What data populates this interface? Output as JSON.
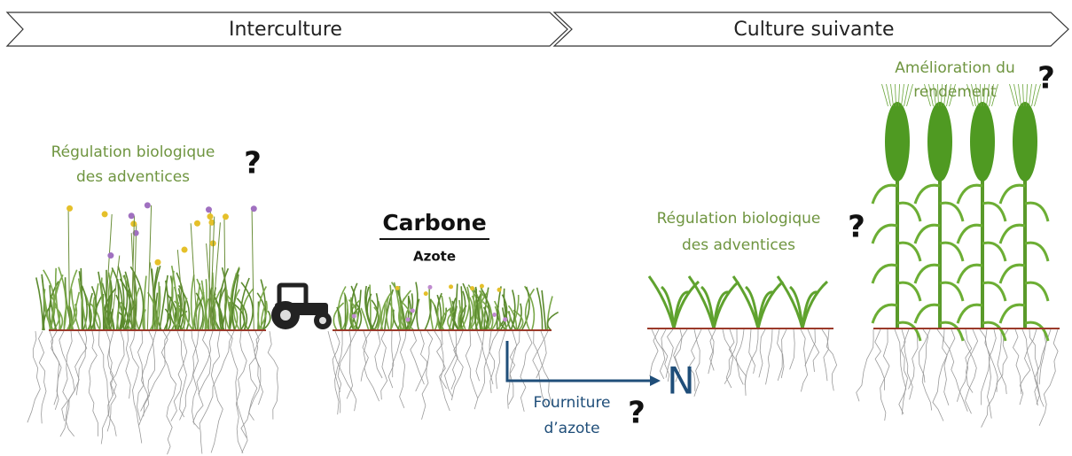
{
  "phases": [
    "Interculture",
    "Culture suivante"
  ],
  "annotations": [
    {
      "lines": [
        "Régulation biologique",
        "des adventices"
      ],
      "mark": "?"
    },
    {
      "lines": [
        "Fourniture",
        "d’azote"
      ],
      "mark": "?"
    },
    {
      "lines": [
        "Régulation biologique",
        "des adventices"
      ],
      "mark": "?"
    },
    {
      "lines": [
        "Amélioration du",
        "rendement"
      ],
      "mark": "?"
    }
  ],
  "ratio": {
    "numerator": "Carbone",
    "denominator": "Azote"
  },
  "nutrient": "N"
}
